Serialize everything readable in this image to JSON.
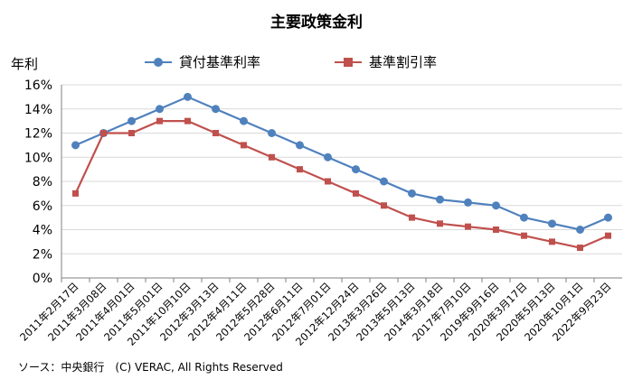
{
  "chart_data": {
    "type": "line",
    "title": "主要政策金利",
    "ylabel": "年利",
    "xlabel": "",
    "ylim": [
      0,
      16
    ],
    "yticks": [
      "0%",
      "2%",
      "4%",
      "6%",
      "8%",
      "10%",
      "12%",
      "14%",
      "16%"
    ],
    "categories": [
      "2011年2月17日",
      "2011年3月08日",
      "2011年4月01日",
      "2011年5月01日",
      "2011年10月10日",
      "2012年3月13日",
      "2012年4月11日",
      "2012年5月28日",
      "2012年6月11日",
      "2012年7月01日",
      "2012年12月24日",
      "2013年3月26日",
      "2013年5月13日",
      "2014年3月18日",
      "2017年7月10日",
      "2019年9月16日",
      "2020年3月17日",
      "2020年5月13日",
      "2020年10月1日",
      "2022年9月23日"
    ],
    "series": [
      {
        "name": "貸付基準利率",
        "color": "#4f81bd",
        "marker": "circle",
        "values": [
          11,
          12,
          13,
          14,
          15,
          14,
          13,
          12,
          11,
          10,
          9,
          8,
          7,
          6.5,
          6.25,
          6,
          5,
          4.5,
          4,
          5
        ]
      },
      {
        "name": "基準割引率",
        "color": "#c0504d",
        "marker": "square",
        "values": [
          7,
          12,
          12,
          13,
          13,
          12,
          11,
          10,
          9,
          8,
          7,
          6,
          5,
          4.5,
          4.25,
          4,
          3.5,
          3,
          2.5,
          3.5
        ]
      }
    ],
    "grid": "horizontal",
    "legend": "top"
  },
  "source": "ソース：中央銀行　(C) VERAC, All Rights Reserved"
}
